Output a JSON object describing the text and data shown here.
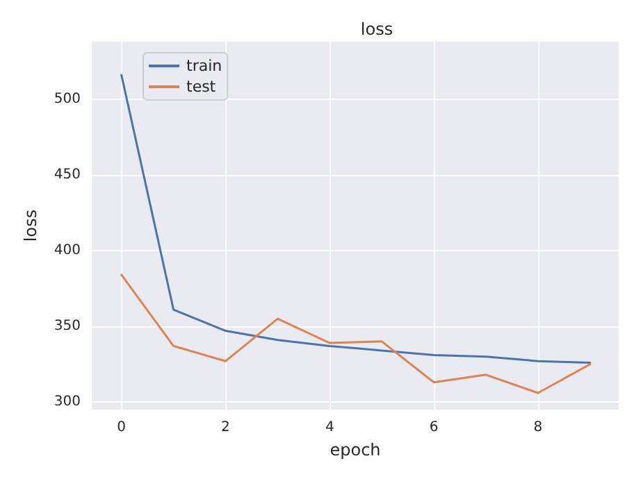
{
  "chart_data": {
    "type": "line",
    "title": "loss",
    "xlabel": "epoch",
    "ylabel": "loss",
    "x": [
      0,
      1,
      2,
      3,
      4,
      5,
      6,
      7,
      8,
      9
    ],
    "series": [
      {
        "name": "train",
        "color": "#4c72b0",
        "values": [
          516,
          361,
          347,
          341,
          337,
          334,
          331,
          330,
          327,
          326
        ]
      },
      {
        "name": "test",
        "color": "#dd8452",
        "values": [
          384,
          337,
          327,
          355,
          339,
          340,
          313,
          318,
          306,
          325
        ]
      }
    ],
    "xlim": [
      -0.57,
      9.55
    ],
    "xticks": [
      0,
      2,
      4,
      6,
      8
    ],
    "ylim": [
      295,
      538
    ],
    "yticks": [
      300,
      350,
      400,
      450,
      500
    ],
    "grid": true,
    "legend": "top left",
    "marker": "none",
    "line_style": "solid"
  }
}
